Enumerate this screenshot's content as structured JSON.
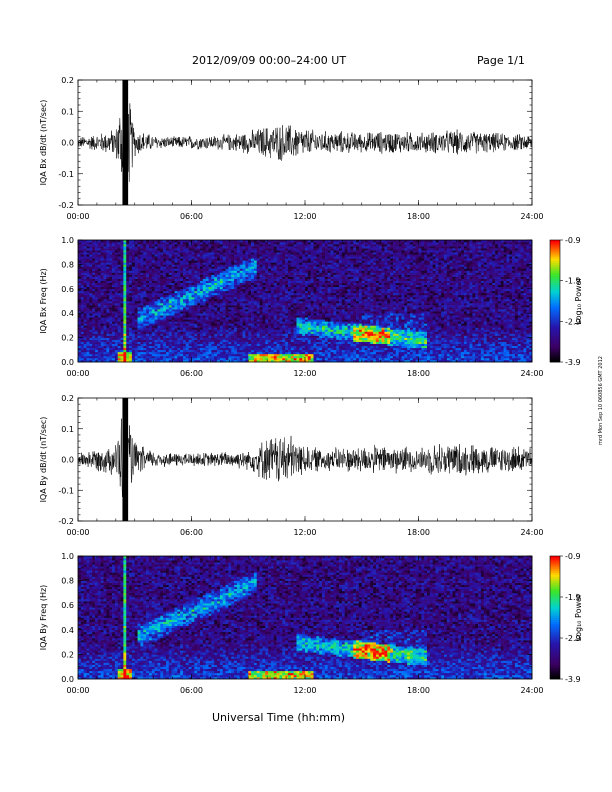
{
  "header": {
    "title": "2012/09/09  00:00–24:00 UT",
    "page": "Page 1/1"
  },
  "footer_xlabel": "Universal Time (hh:mm)",
  "side_note": "mrd Mon Sep 10 060856 GMT 2012",
  "chart_data": [
    {
      "type": "line",
      "title": "",
      "ylabel": "IQA Bx dB/dt (nT/sec)",
      "xlabel": "",
      "xlim": [
        "00:00",
        "24:00"
      ],
      "ylim": [
        -0.2,
        0.2
      ],
      "xticks": [
        "00:00",
        "06:00",
        "12:00",
        "18:00",
        "24:00"
      ],
      "yticks": [
        "-0.2",
        "-0.1",
        "0.0",
        "0.1",
        "0.2"
      ],
      "envelope": {
        "description_units": "nT/sec amplitude envelope vs hour",
        "hours": [
          0,
          1,
          2,
          2.4,
          2.6,
          3,
          4,
          5,
          6,
          7,
          8,
          9,
          10,
          11,
          12,
          13,
          14,
          15,
          16,
          17,
          18,
          19,
          20,
          21,
          22,
          23,
          24
        ],
        "amplitude": [
          0.02,
          0.03,
          0.05,
          0.2,
          0.2,
          0.05,
          0.025,
          0.02,
          0.025,
          0.025,
          0.03,
          0.04,
          0.06,
          0.07,
          0.05,
          0.04,
          0.04,
          0.035,
          0.04,
          0.04,
          0.035,
          0.04,
          0.045,
          0.04,
          0.035,
          0.03,
          0.03
        ]
      }
    },
    {
      "type": "heatmap",
      "title": "",
      "ylabel": "IQA Bx Freq (Hz)",
      "xlim": [
        "00:00",
        "24:00"
      ],
      "ylim": [
        0.0,
        1.0
      ],
      "xticks": [
        "00:00",
        "06:00",
        "12:00",
        "18:00",
        "24:00"
      ],
      "yticks": [
        "0.0",
        "0.2",
        "0.4",
        "0.6",
        "0.8",
        "1.0"
      ],
      "colorbar": {
        "label": "Log₁₀ Power",
        "ticks": [
          "-0.9",
          "-1.9",
          "-2.9",
          "-3.9"
        ],
        "range": [
          -3.9,
          -0.9
        ]
      }
    },
    {
      "type": "line",
      "title": "",
      "ylabel": "IQA By dB/dt (nT/sec)",
      "xlim": [
        "00:00",
        "24:00"
      ],
      "ylim": [
        -0.2,
        0.2
      ],
      "xticks": [
        "00:00",
        "06:00",
        "12:00",
        "18:00",
        "24:00"
      ],
      "yticks": [
        "-0.2",
        "-0.1",
        "0.0",
        "0.1",
        "0.2"
      ],
      "envelope": {
        "description_units": "nT/sec amplitude envelope vs hour",
        "hours": [
          0,
          1,
          2,
          2.4,
          2.6,
          3,
          4,
          5,
          6,
          7,
          8,
          9,
          10,
          11,
          12,
          13,
          14,
          15,
          16,
          17,
          18,
          19,
          20,
          21,
          22,
          23,
          24
        ],
        "amplitude": [
          0.025,
          0.04,
          0.06,
          0.2,
          0.2,
          0.06,
          0.03,
          0.025,
          0.025,
          0.025,
          0.03,
          0.035,
          0.08,
          0.1,
          0.05,
          0.04,
          0.045,
          0.05,
          0.05,
          0.05,
          0.04,
          0.06,
          0.06,
          0.055,
          0.05,
          0.05,
          0.04
        ]
      }
    },
    {
      "type": "heatmap",
      "title": "",
      "ylabel": "IQA By Freq (Hz)",
      "xlim": [
        "00:00",
        "24:00"
      ],
      "ylim": [
        0.0,
        1.0
      ],
      "xticks": [
        "00:00",
        "06:00",
        "12:00",
        "18:00",
        "24:00"
      ],
      "yticks": [
        "0.0",
        "0.2",
        "0.4",
        "0.6",
        "0.8",
        "1.0"
      ],
      "colorbar": {
        "label": "Log₁₀ Power",
        "ticks": [
          "-0.9",
          "-1.9",
          "-2.9",
          "-3.9"
        ],
        "range": [
          -3.9,
          -0.9
        ]
      }
    }
  ]
}
